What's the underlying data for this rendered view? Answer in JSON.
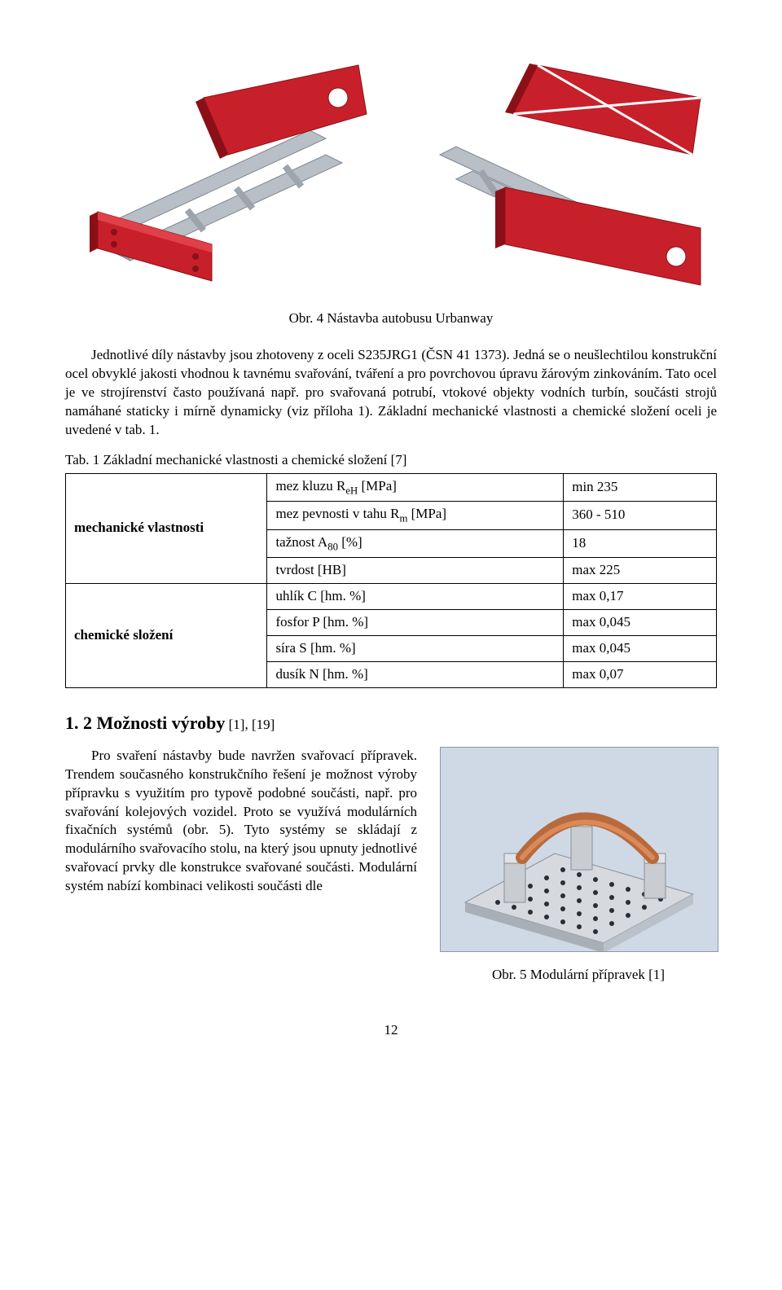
{
  "figure_top_caption": "Obr. 4 Nástavba autobusu Urbanway",
  "paragraph1": "Jednotlivé díly nástavby jsou zhotoveny z oceli S235JRG1 (ČSN 41 1373). Jedná se o neušlechtilou konstrukční ocel obvyklé jakosti vhodnou k tavnému svařování, tváření a pro povrchovou úpravu žárovým zinkováním. Tato ocel je ve strojírenství často používaná např. pro svařovaná potrubí, vtokové objekty vodních turbín, součásti strojů namáhané staticky i mírně dynamicky (viz příloha 1). Základní mechanické vlastnosti a chemické složení oceli je uvedené v tab. 1.",
  "table_title": "Tab. 1 Základní mechanické vlastnosti a chemické složení [7]",
  "table": {
    "group1_label": "mechanické vlastnosti",
    "group2_label": "chemické složení",
    "rows": [
      {
        "attr_html": "mez kluzu R<sub>eH</sub> [MPa]",
        "val": "min 235"
      },
      {
        "attr_html": "mez pevnosti v tahu R<sub>m</sub> [MPa]",
        "val": "360 - 510"
      },
      {
        "attr_html": "tažnost A<sub>80</sub> [%]",
        "val": "18"
      },
      {
        "attr_html": "tvrdost [HB]",
        "val": "max 225"
      },
      {
        "attr_html": "uhlík C [hm. %]",
        "val": "max 0,17"
      },
      {
        "attr_html": "fosfor P [hm. %]",
        "val": "max 0,045"
      },
      {
        "attr_html": "síra S [hm. %]",
        "val": "max 0,045"
      },
      {
        "attr_html": "dusík N [hm. %]",
        "val": "max 0,07"
      }
    ]
  },
  "section_heading": "1. 2 Možnosti výroby",
  "section_refs": " [1], [19]",
  "paragraph2": "Pro svaření nástavby bude navržen svařovací přípravek. Trendem současného konstrukčního řešení je možnost výroby přípravku s využitím pro typově podobné součásti, např. pro svařování kolejových vozidel. Proto se využívá modulárních fixačních systémů (obr. 5). Tyto systémy se skládají z modulárního svařovacího stolu, na který jsou upnuty jednotlivé svařovací prvky dle konstrukce svařované součásti. Modulární systém nabízí kombinaci velikosti součásti dle",
  "figure5_caption": "Obr. 5 Modulární přípravek [1]",
  "page_number": "12",
  "colors": {
    "red": "#c8202a",
    "grey": "#b8bfc6",
    "darkgrey": "#8a9098",
    "photo_bg": "#cfd9e6",
    "steel": "#c9ccd0"
  },
  "cad": {
    "type": "3d-illustration",
    "description": "Two CAD isometric renderings of a bus frame add-on (nástavba). Grey steel tubular frame with red sheet-metal panels. Left view: front-top; right view: rear-top.",
    "frame_color": "#b8bfc6",
    "frame_shadow": "#7e868f",
    "panel_color": "#c8202a",
    "panel_dark": "#8a1018",
    "hole_color": "#ffffff"
  },
  "photo": {
    "type": "photo-illustration",
    "description": "Modular welding fixture: perforated square base plate with three steel clamp posts and an arched copper clamp.",
    "plate_color": "#d6d9de",
    "hole_color": "#2a2e33",
    "post_color": "#c9ccd0",
    "copper_color": "#b86a3c",
    "bg_color": "#cfd9e6"
  }
}
